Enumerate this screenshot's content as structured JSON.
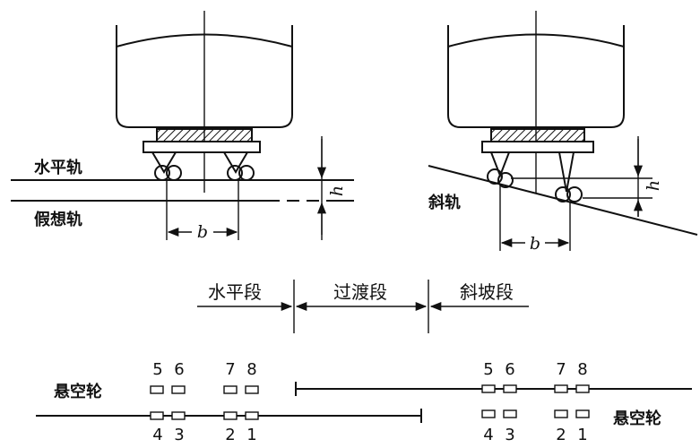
{
  "left_figure": {
    "label_horizontal_rail": "水平轨",
    "label_virtual_rail": "假想轨",
    "dim_b": "b",
    "dim_h": "h"
  },
  "right_figure": {
    "label_slope_rail": "斜轨",
    "dim_b": "b",
    "dim_h": "h"
  },
  "segments": {
    "horizontal": "水平段",
    "transition": "过渡段",
    "slope": "斜坡段"
  },
  "wheel_layout": {
    "left_hanging_label": "悬空轮",
    "right_hanging_label": "悬空轮",
    "left_top_numbers": [
      "5",
      "6",
      "7",
      "8"
    ],
    "left_bottom_numbers": [
      "4",
      "3",
      "2",
      "1"
    ],
    "right_top_numbers": [
      "5",
      "6",
      "7",
      "8"
    ],
    "right_bottom_numbers": [
      "4",
      "3",
      "2",
      "1"
    ]
  }
}
